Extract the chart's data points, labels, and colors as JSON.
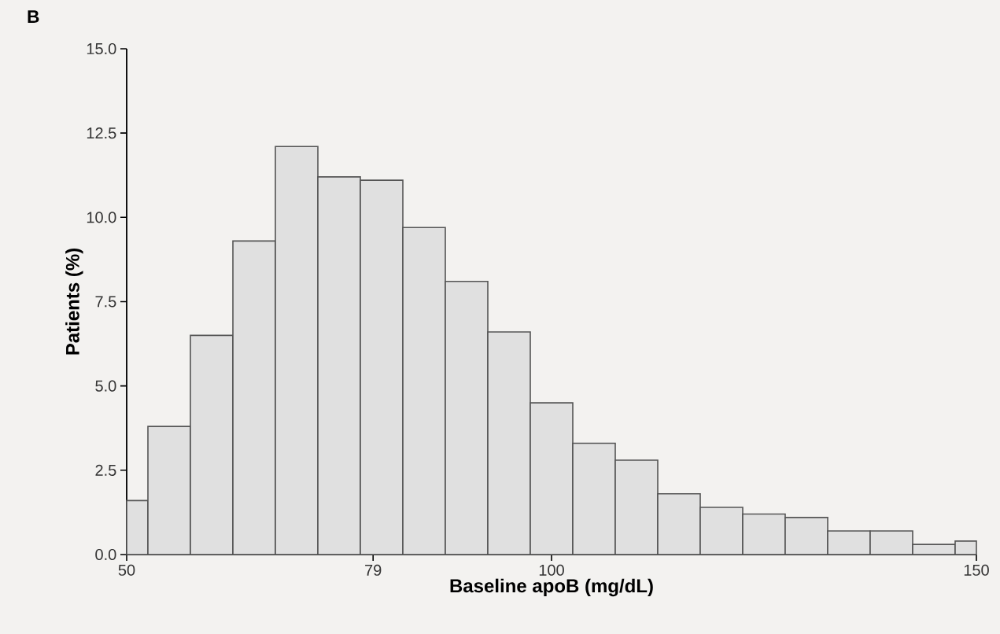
{
  "chart_data": {
    "type": "histogram",
    "xlabel": "Baseline apoB (mg/dL)",
    "ylabel": "Patients (%)",
    "annotations": [
      "B"
    ],
    "bins": [
      50,
      52.5,
      57.5,
      62.5,
      67.5,
      72.5,
      77.5,
      82.5,
      87.5,
      92.5,
      97.5,
      102.5,
      107.5,
      112.5,
      117.5,
      122.5,
      127.5,
      132.5,
      137.5,
      142.5,
      147.5,
      150
    ],
    "values": [
      1.6,
      3.8,
      6.5,
      9.3,
      12.1,
      11.2,
      11.1,
      9.7,
      8.1,
      6.6,
      4.5,
      3.3,
      2.8,
      1.8,
      1.4,
      1.2,
      1.1,
      0.7,
      0.7,
      0.3,
      0.4
    ],
    "color": "#e0e0e0",
    "xlim": [
      50,
      150
    ],
    "ylim": [
      0,
      15
    ],
    "xticks": [
      50,
      79,
      100,
      150
    ],
    "yticks": [
      {
        "value": 0,
        "label": "0.0"
      },
      {
        "value": 2.5,
        "label": "2.5"
      },
      {
        "value": 5,
        "label": "5.0"
      },
      {
        "value": 7.5,
        "label": "7.5"
      },
      {
        "value": 10,
        "label": "10.0"
      },
      {
        "value": 12.5,
        "label": "12.5"
      },
      {
        "value": 15,
        "label": "15.0"
      }
    ],
    "grid": false
  }
}
